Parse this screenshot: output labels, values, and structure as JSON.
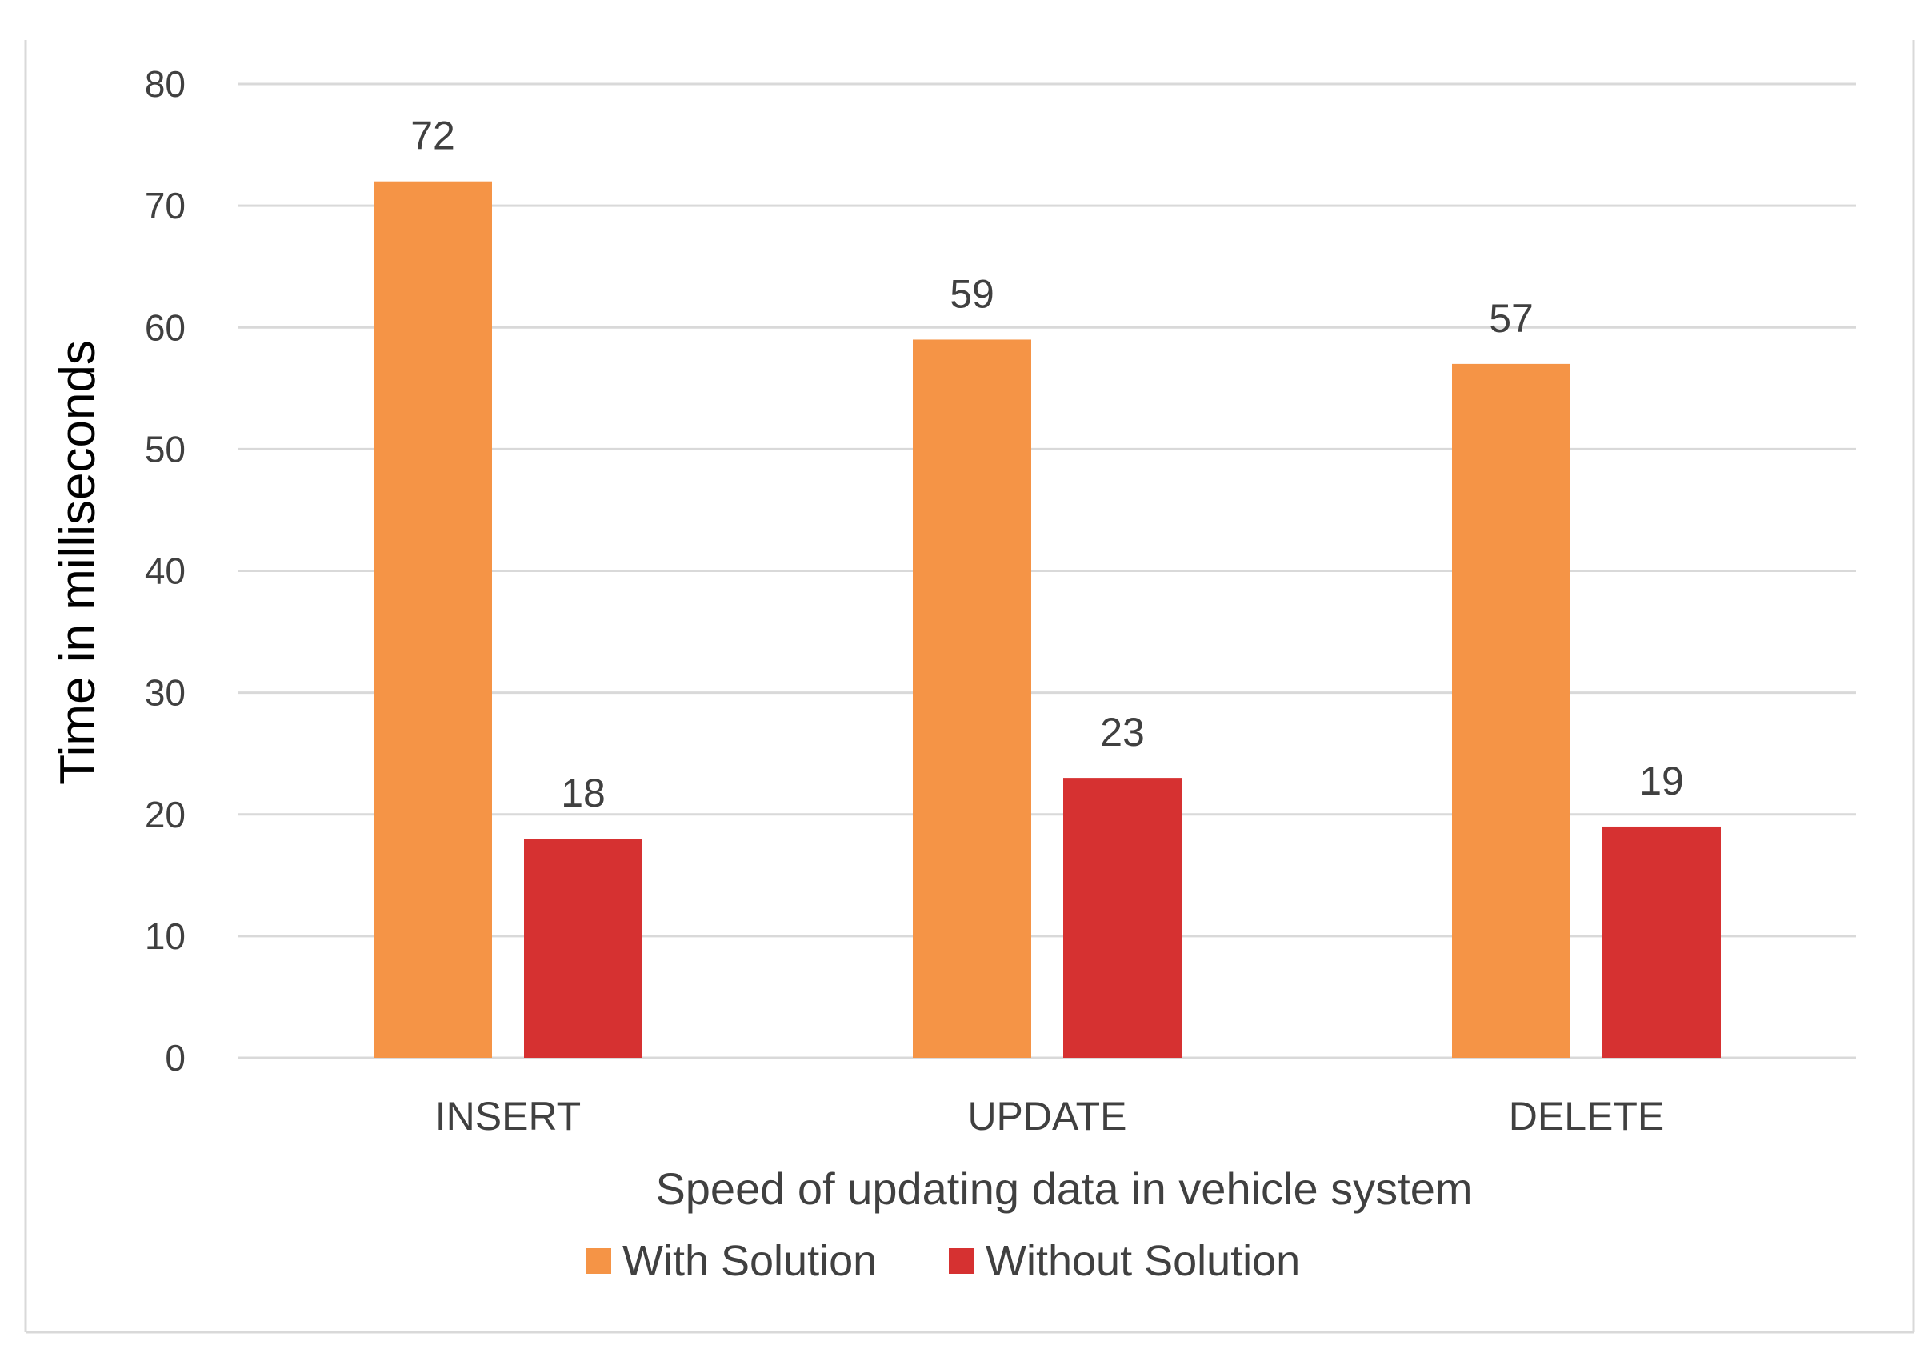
{
  "chart_data": {
    "type": "bar",
    "categories": [
      "INSERT",
      "UPDATE",
      "DELETE"
    ],
    "series": [
      {
        "name": "With Solution",
        "values": [
          72,
          59,
          57
        ],
        "color": "#F59446"
      },
      {
        "name": "Without Solution",
        "values": [
          18,
          23,
          19
        ],
        "color": "#D63131"
      }
    ],
    "title": "",
    "xlabel": "Speed of updating data in vehicle system",
    "ylabel": "Time in milliseconds",
    "ylim": [
      0,
      80
    ],
    "yticks": [
      0,
      10,
      20,
      30,
      40,
      50,
      60,
      70,
      80
    ],
    "grid": true,
    "legend_position": "bottom",
    "colors": {
      "gridline": "#D9D9D9",
      "text": "#404040",
      "frame": "#D9D9D9"
    }
  }
}
